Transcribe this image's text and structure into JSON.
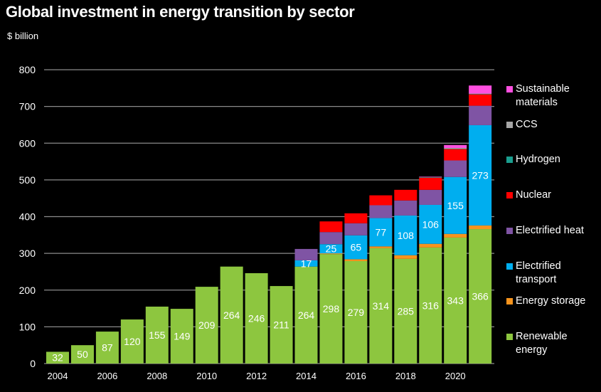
{
  "chart_data": {
    "type": "bar",
    "stacked": true,
    "title": "Global investment in energy transition by sector",
    "ylabel": "$ billion",
    "ylim": [
      0,
      800
    ],
    "yticks": [
      0,
      100,
      200,
      300,
      400,
      500,
      600,
      700,
      800
    ],
    "grid": true,
    "legend_position": "right",
    "categories": [
      2004,
      2005,
      2006,
      2007,
      2008,
      2009,
      2010,
      2011,
      2012,
      2013,
      2014,
      2015,
      2016,
      2017,
      2018,
      2019,
      2020,
      2021
    ],
    "xtick_labels": [
      "2004",
      "2006",
      "2008",
      "2010",
      "2012",
      "2014",
      "2016",
      "2018",
      "2020"
    ],
    "series": [
      {
        "name": "Renewable energy",
        "color": "#8dc63f",
        "labeled": true,
        "values": [
          32,
          50,
          87,
          120,
          155,
          149,
          209,
          264,
          246,
          211,
          264,
          298,
          279,
          314,
          285,
          316,
          343,
          366
        ]
      },
      {
        "name": "Energy storage",
        "color": "#f7941d",
        "labeled": false,
        "values": [
          0,
          0,
          0,
          0,
          0,
          0,
          0,
          0,
          0,
          0,
          0,
          2,
          5,
          5,
          10,
          10,
          10,
          10
        ]
      },
      {
        "name": "Electrified transport",
        "color": "#00aeef",
        "labeled": true,
        "values": [
          0,
          0,
          0,
          0,
          0,
          0,
          0,
          0,
          0,
          0,
          17,
          25,
          65,
          77,
          108,
          106,
          155,
          273
        ]
      },
      {
        "name": "Electrified heat",
        "color": "#7f54a4",
        "labeled": false,
        "values": [
          0,
          0,
          0,
          0,
          0,
          0,
          0,
          0,
          0,
          0,
          31,
          33,
          33,
          35,
          41,
          41,
          45,
          53
        ]
      },
      {
        "name": "Nuclear",
        "color": "#ff0000",
        "labeled": false,
        "values": [
          0,
          0,
          0,
          0,
          0,
          0,
          0,
          0,
          0,
          0,
          0,
          29,
          27,
          27,
          29,
          33,
          31,
          31
        ]
      },
      {
        "name": "Hydrogen",
        "color": "#1a9e8f",
        "labeled": false,
        "values": [
          0,
          0,
          0,
          0,
          0,
          0,
          0,
          0,
          0,
          0,
          0,
          0,
          0,
          0,
          0,
          1,
          1,
          1
        ]
      },
      {
        "name": "CCS",
        "color": "#a6a6a6",
        "labeled": false,
        "values": [
          0,
          0,
          0,
          0,
          0,
          0,
          0,
          0,
          0,
          0,
          0,
          0,
          0,
          0,
          0,
          1,
          2,
          1
        ]
      },
      {
        "name": "Sustainable materials",
        "color": "#ff4fe0",
        "labeled": false,
        "values": [
          0,
          0,
          0,
          0,
          0,
          0,
          0,
          0,
          0,
          0,
          0,
          0,
          0,
          0,
          0,
          1,
          8,
          22
        ]
      }
    ],
    "legend": [
      {
        "label": "Sustainable materials",
        "color": "#ff4fe0"
      },
      {
        "label": "CCS",
        "color": "#a6a6a6"
      },
      {
        "label": "Hydrogen",
        "color": "#1a9e8f"
      },
      {
        "label": "Nuclear",
        "color": "#ff0000"
      },
      {
        "label": "Electrified heat",
        "color": "#7f54a4"
      },
      {
        "label": "Electrified transport",
        "color": "#00aeef"
      },
      {
        "label": "Energy storage",
        "color": "#f7941d"
      },
      {
        "label": "Renewable energy",
        "color": "#8dc63f"
      }
    ]
  }
}
